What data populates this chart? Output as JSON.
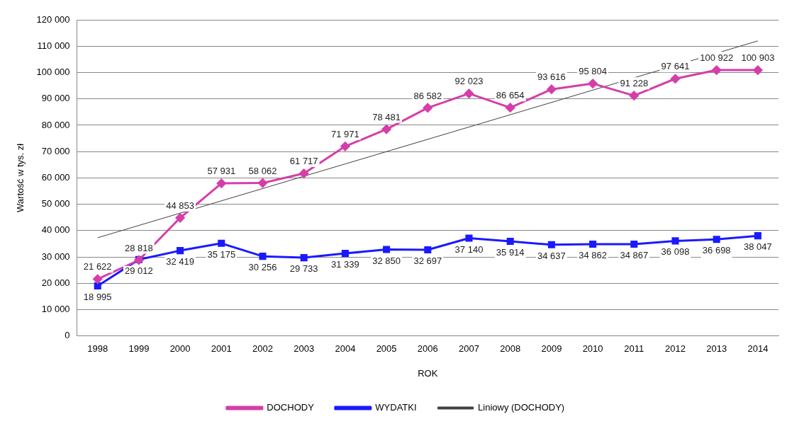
{
  "chart_data": {
    "type": "line",
    "xlabel": "ROK",
    "ylabel": "Wartość w tys. zł",
    "x": [
      1998,
      1999,
      2000,
      2001,
      2002,
      2003,
      2004,
      2005,
      2006,
      2007,
      2008,
      2009,
      2010,
      2011,
      2012,
      2013,
      2014
    ],
    "xlim": [
      1997.5,
      2014.5
    ],
    "xticks": [
      1998,
      1999,
      2000,
      2001,
      2002,
      2003,
      2004,
      2005,
      2006,
      2007,
      2008,
      2009,
      2010,
      2011,
      2012,
      2013,
      2014
    ],
    "ylim": [
      0,
      120000
    ],
    "yticks": [
      0,
      {
        "value": 10000,
        "label": "10 000"
      },
      {
        "value": 20000,
        "label": "20 000"
      },
      {
        "value": 30000,
        "label": "30 000"
      },
      {
        "value": 40000,
        "label": "40 000"
      },
      {
        "value": 50000,
        "label": "50 000"
      },
      {
        "value": 60000,
        "label": "60 000"
      },
      {
        "value": 70000,
        "label": "70 000"
      },
      {
        "value": 80000,
        "label": "80 000"
      },
      {
        "value": 90000,
        "label": "90 000"
      },
      {
        "value": 100000,
        "label": "100 000"
      },
      {
        "value": 110000,
        "label": "110 000"
      },
      {
        "value": 120000,
        "label": "120 000"
      }
    ],
    "grid": "y",
    "legend": "bottom",
    "series": [
      {
        "name": "DOCHODY",
        "color": "#d53ea8",
        "marker": "diamond",
        "values": [
          21622,
          28818,
          44853,
          57931,
          58062,
          61717,
          71971,
          78481,
          86582,
          92023,
          86654,
          93616,
          95804,
          91228,
          97641,
          100922,
          100903
        ],
        "value_labels": [
          "21 622",
          "28 818",
          "44 853",
          "57 931",
          "58 062",
          "61 717",
          "71 971",
          "78 481",
          "86 582",
          "92 023",
          "86 654",
          "93 616",
          "95 804",
          "91 228",
          "97 641",
          "100 922",
          "100 903"
        ]
      },
      {
        "name": "WYDATKI",
        "color": "#1a1aff",
        "marker": "square",
        "values": [
          18995,
          29012,
          32419,
          35175,
          30256,
          29733,
          31339,
          32850,
          32697,
          37140,
          35914,
          34637,
          34862,
          34867,
          36098,
          36698,
          38047
        ],
        "value_labels": [
          "18 995",
          "29 012",
          "32 419",
          "35 175",
          "30 256",
          "29 733",
          "31 339",
          "32 850",
          "32 697",
          "37 140",
          "35 914",
          "34 637",
          "34 862",
          "34 867",
          "36 098",
          "36 698",
          "38 047"
        ]
      },
      {
        "name": "Liniowy (DOCHODY)",
        "color": "#404040",
        "marker": "none",
        "x": [
          1998,
          2014
        ],
        "values": [
          37300,
          112000
        ]
      }
    ]
  }
}
